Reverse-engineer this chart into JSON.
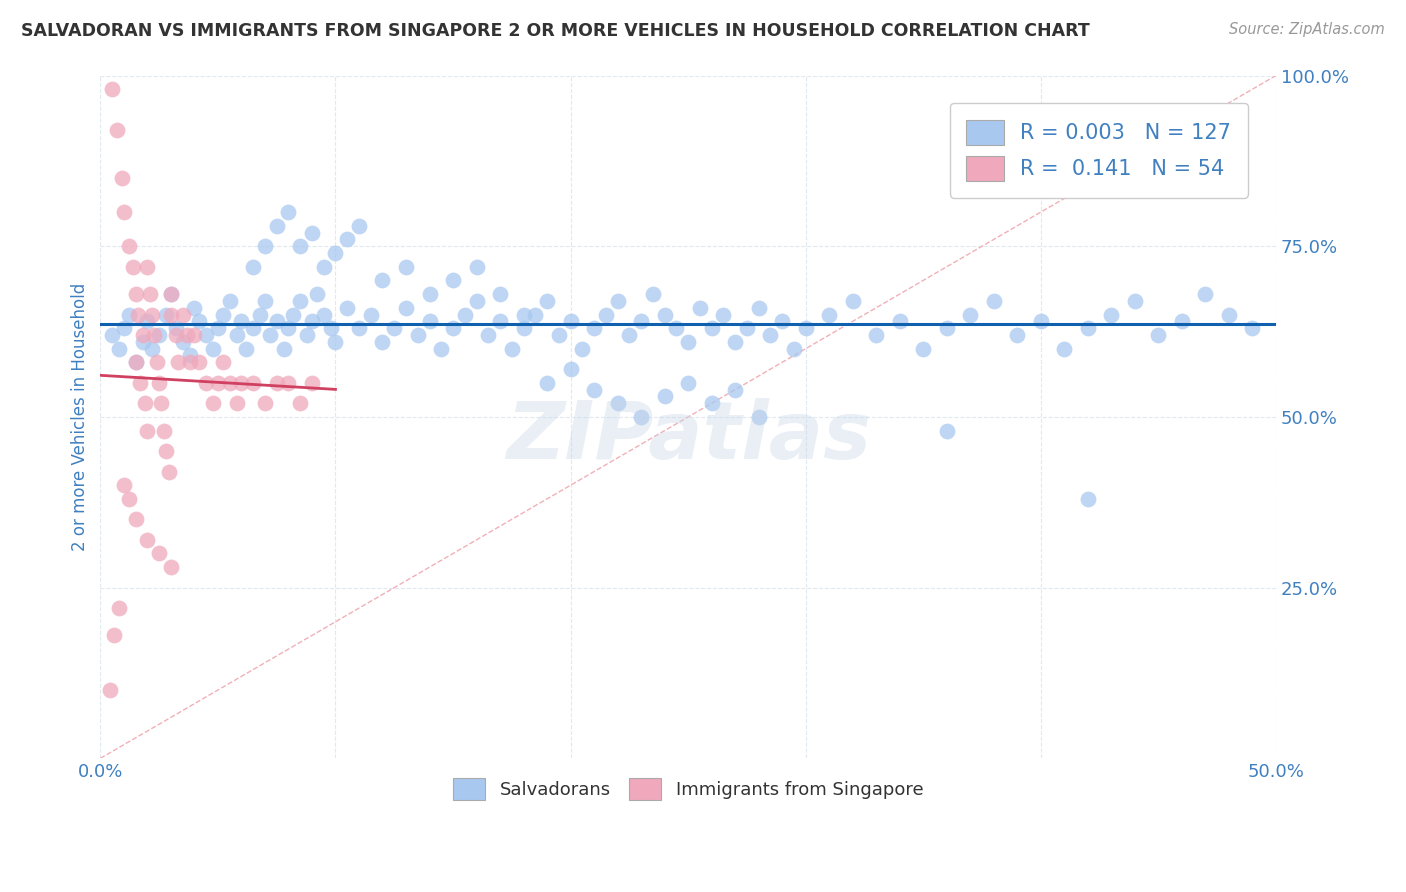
{
  "title": "SALVADORAN VS IMMIGRANTS FROM SINGAPORE 2 OR MORE VEHICLES IN HOUSEHOLD CORRELATION CHART",
  "source": "Source: ZipAtlas.com",
  "ylabel": "2 or more Vehicles in Household",
  "xlim": [
    0.0,
    0.5
  ],
  "ylim": [
    0.0,
    1.0
  ],
  "legend_labels": [
    "Salvadorans",
    "Immigrants from Singapore"
  ],
  "R_blue": 0.003,
  "N_blue": 127,
  "R_pink": 0.141,
  "N_pink": 54,
  "blue_color": "#a8c8f0",
  "pink_color": "#f0a8bc",
  "blue_line_color": "#1060b0",
  "pink_line_color": "#d04060",
  "diag_color": "#e8a0a8",
  "title_color": "#333333",
  "source_color": "#999999",
  "axis_label_color": "#4080c0",
  "legend_text_color": "#333333",
  "legend_RN_color": "#4080c0",
  "background_color": "#ffffff",
  "grid_color": "#e0e8f0",
  "blue_scatter_x": [
    0.005,
    0.008,
    0.01,
    0.012,
    0.015,
    0.018,
    0.02,
    0.022,
    0.025,
    0.028,
    0.03,
    0.032,
    0.035,
    0.038,
    0.04,
    0.042,
    0.045,
    0.048,
    0.05,
    0.052,
    0.055,
    0.058,
    0.06,
    0.062,
    0.065,
    0.068,
    0.07,
    0.072,
    0.075,
    0.078,
    0.08,
    0.082,
    0.085,
    0.088,
    0.09,
    0.092,
    0.095,
    0.098,
    0.1,
    0.105,
    0.11,
    0.115,
    0.12,
    0.125,
    0.13,
    0.135,
    0.14,
    0.145,
    0.15,
    0.155,
    0.16,
    0.165,
    0.17,
    0.175,
    0.18,
    0.185,
    0.19,
    0.195,
    0.2,
    0.205,
    0.21,
    0.215,
    0.22,
    0.225,
    0.23,
    0.235,
    0.24,
    0.245,
    0.25,
    0.255,
    0.26,
    0.265,
    0.27,
    0.275,
    0.28,
    0.285,
    0.29,
    0.295,
    0.3,
    0.31,
    0.32,
    0.33,
    0.34,
    0.35,
    0.36,
    0.37,
    0.38,
    0.39,
    0.4,
    0.41,
    0.42,
    0.43,
    0.44,
    0.45,
    0.46,
    0.47,
    0.48,
    0.49,
    0.065,
    0.07,
    0.075,
    0.08,
    0.085,
    0.09,
    0.095,
    0.1,
    0.105,
    0.11,
    0.12,
    0.13,
    0.14,
    0.15,
    0.16,
    0.17,
    0.18,
    0.19,
    0.2,
    0.21,
    0.22,
    0.23,
    0.24,
    0.25,
    0.26,
    0.27,
    0.28,
    0.36,
    0.42
  ],
  "blue_scatter_y": [
    0.62,
    0.6,
    0.63,
    0.65,
    0.58,
    0.61,
    0.64,
    0.6,
    0.62,
    0.65,
    0.68,
    0.63,
    0.61,
    0.59,
    0.66,
    0.64,
    0.62,
    0.6,
    0.63,
    0.65,
    0.67,
    0.62,
    0.64,
    0.6,
    0.63,
    0.65,
    0.67,
    0.62,
    0.64,
    0.6,
    0.63,
    0.65,
    0.67,
    0.62,
    0.64,
    0.68,
    0.65,
    0.63,
    0.61,
    0.66,
    0.63,
    0.65,
    0.61,
    0.63,
    0.66,
    0.62,
    0.64,
    0.6,
    0.63,
    0.65,
    0.67,
    0.62,
    0.64,
    0.6,
    0.63,
    0.65,
    0.67,
    0.62,
    0.64,
    0.6,
    0.63,
    0.65,
    0.67,
    0.62,
    0.64,
    0.68,
    0.65,
    0.63,
    0.61,
    0.66,
    0.63,
    0.65,
    0.61,
    0.63,
    0.66,
    0.62,
    0.64,
    0.6,
    0.63,
    0.65,
    0.67,
    0.62,
    0.64,
    0.6,
    0.63,
    0.65,
    0.67,
    0.62,
    0.64,
    0.6,
    0.63,
    0.65,
    0.67,
    0.62,
    0.64,
    0.68,
    0.65,
    0.63,
    0.72,
    0.75,
    0.78,
    0.8,
    0.75,
    0.77,
    0.72,
    0.74,
    0.76,
    0.78,
    0.7,
    0.72,
    0.68,
    0.7,
    0.72,
    0.68,
    0.65,
    0.55,
    0.57,
    0.54,
    0.52,
    0.5,
    0.53,
    0.55,
    0.52,
    0.54,
    0.5,
    0.48,
    0.38
  ],
  "pink_scatter_x": [
    0.005,
    0.007,
    0.009,
    0.01,
    0.012,
    0.014,
    0.015,
    0.016,
    0.018,
    0.015,
    0.017,
    0.019,
    0.02,
    0.02,
    0.021,
    0.022,
    0.023,
    0.024,
    0.025,
    0.026,
    0.027,
    0.028,
    0.029,
    0.03,
    0.03,
    0.032,
    0.033,
    0.035,
    0.037,
    0.038,
    0.04,
    0.042,
    0.045,
    0.048,
    0.05,
    0.052,
    0.055,
    0.058,
    0.06,
    0.065,
    0.07,
    0.075,
    0.08,
    0.085,
    0.09,
    0.01,
    0.012,
    0.015,
    0.02,
    0.025,
    0.03,
    0.008,
    0.006,
    0.004
  ],
  "pink_scatter_y": [
    0.98,
    0.92,
    0.85,
    0.8,
    0.75,
    0.72,
    0.68,
    0.65,
    0.62,
    0.58,
    0.55,
    0.52,
    0.48,
    0.72,
    0.68,
    0.65,
    0.62,
    0.58,
    0.55,
    0.52,
    0.48,
    0.45,
    0.42,
    0.68,
    0.65,
    0.62,
    0.58,
    0.65,
    0.62,
    0.58,
    0.62,
    0.58,
    0.55,
    0.52,
    0.55,
    0.58,
    0.55,
    0.52,
    0.55,
    0.55,
    0.52,
    0.55,
    0.55,
    0.52,
    0.55,
    0.4,
    0.38,
    0.35,
    0.32,
    0.3,
    0.28,
    0.22,
    0.18,
    0.1
  ]
}
